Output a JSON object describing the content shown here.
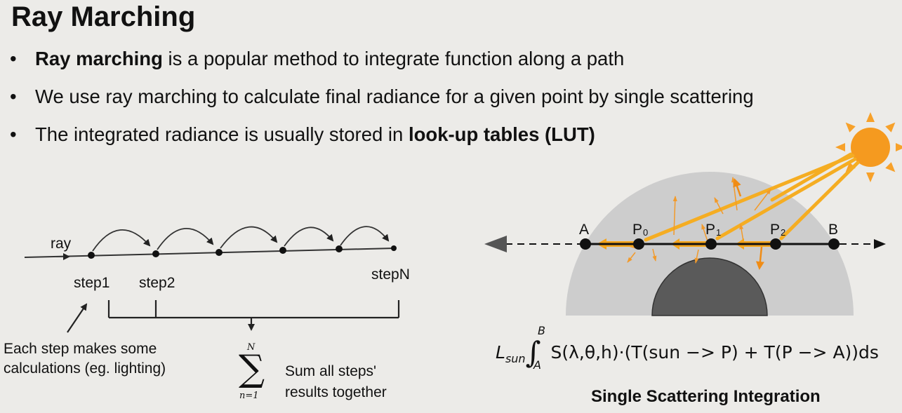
{
  "slide": {
    "title": "Ray Marching",
    "bullets": [
      {
        "bold": "Ray marching",
        "rest": " is a popular method to integrate function along a path"
      },
      {
        "pre": "We use ray marching to calculate final radiance for a given point by single scattering"
      },
      {
        "pre": "The integrated radiance is usually stored in ",
        "bold": "look-up tables (LUT)"
      }
    ]
  },
  "left_diagram": {
    "ray_label": "ray",
    "steps": [
      "step1",
      "step2",
      "stepN"
    ],
    "step_note": [
      "Each step makes some",
      "calculations (eg. lighting)"
    ],
    "sum_upper": "N",
    "sum_lower": "n=1",
    "sum_note": [
      "Sum all steps'",
      "results together"
    ]
  },
  "right_diagram": {
    "points": [
      {
        "name": "A",
        "sub": ""
      },
      {
        "name": "P",
        "sub": "0"
      },
      {
        "name": "P",
        "sub": "1"
      },
      {
        "name": "P",
        "sub": "2"
      },
      {
        "name": "B",
        "sub": ""
      }
    ],
    "formula": {
      "lead": "L",
      "lead_sub": "sun",
      "lower": "A",
      "upper": "B",
      "body": "S(λ,θ,h)·(T(sun −> P) + T(P −> A))ds"
    },
    "caption": "Single Scattering Integration"
  },
  "colors": {
    "sun": "#f59a1f",
    "beam": "#f4a81c",
    "dome_outer": "#cfcfcf",
    "dome_inner": "#5b5b5b"
  }
}
